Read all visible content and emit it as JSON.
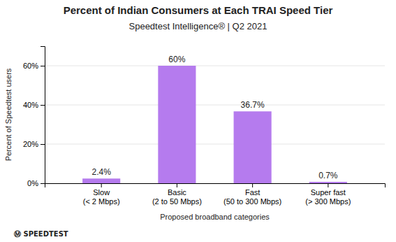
{
  "chart_data": {
    "type": "bar",
    "title": "Percent of Indian Consumers at Each TRAI Speed Tier",
    "subtitle": "Speedtest Intelligence® | Q2 2021",
    "categories": [
      "Slow\n(< 2 Mbps)",
      "Basic\n(2 to 50 Mbps)",
      "Fast\n(50 to 300 Mbps)",
      "Super fast\n(> 300 Mbps)"
    ],
    "values": [
      2.4,
      60.0,
      36.7,
      0.7
    ],
    "value_labels": [
      "2.4%",
      "60%",
      "36.7%",
      "0.7%"
    ],
    "data_labels": true,
    "color": "#b57bee",
    "xlabel": "Proposed broadband categories",
    "ylabel": "Percent of Speedtest users",
    "ylim": [
      0,
      70
    ],
    "yticks": [
      {
        "value": 0,
        "label": "0%"
      },
      {
        "value": 20,
        "label": "20%"
      },
      {
        "value": 40,
        "label": "40%"
      },
      {
        "value": 60,
        "label": "60%"
      }
    ],
    "grid": true,
    "annotations": [
      "Ⓜ SPEEDTEST"
    ]
  }
}
